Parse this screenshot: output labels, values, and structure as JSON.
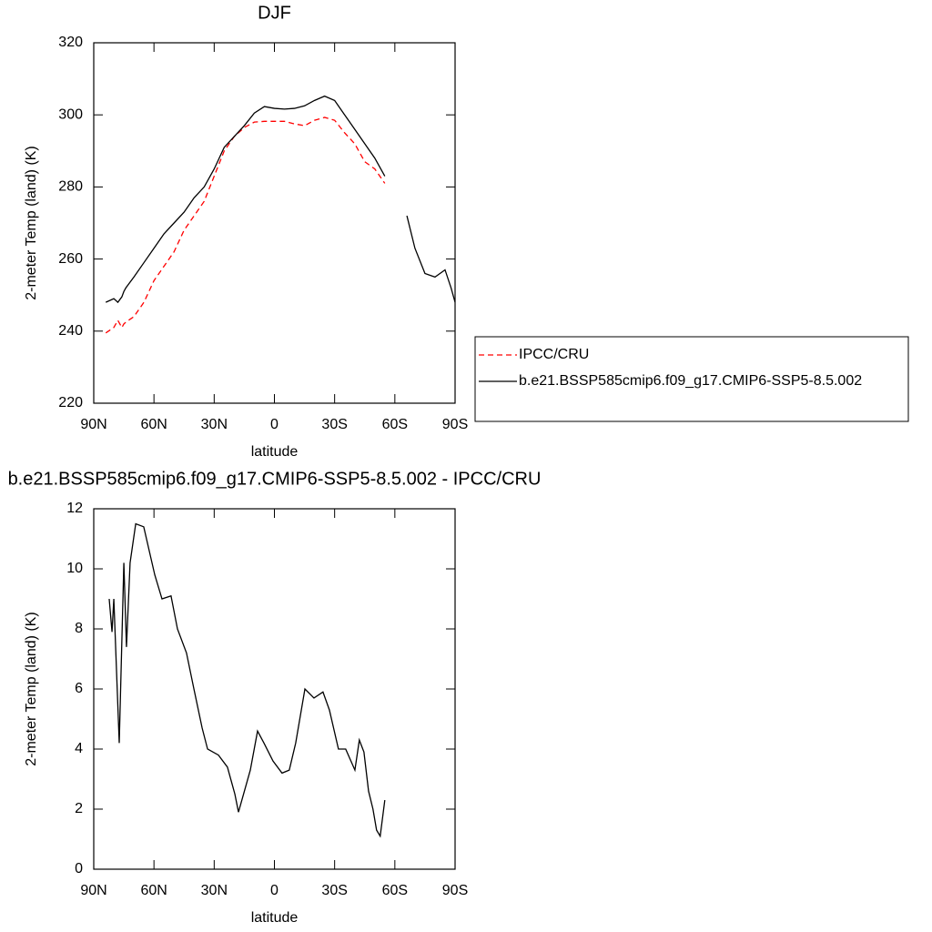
{
  "chart_data": [
    {
      "type": "line",
      "title": "DJF",
      "x_label": "latitude",
      "y_label": "2-meter Temp (land) (K)",
      "xlim": [
        90,
        -90
      ],
      "ylim": [
        220,
        320
      ],
      "xticks": [
        {
          "value": 90,
          "label": "90N"
        },
        {
          "value": 60,
          "label": "60N"
        },
        {
          "value": 30,
          "label": "30N"
        },
        0,
        {
          "value": -30,
          "label": "30S"
        },
        {
          "value": -60,
          "label": "60S"
        },
        {
          "value": -90,
          "label": "90S"
        }
      ],
      "yticks": [
        220,
        240,
        260,
        280,
        300,
        320
      ],
      "legend": "right",
      "x": [
        84,
        80,
        78,
        76,
        75,
        74,
        70,
        65,
        60,
        55,
        50,
        45,
        40,
        35,
        30,
        25,
        20,
        15,
        10,
        5,
        0,
        -5,
        -10,
        -15,
        -20,
        -25,
        -30,
        -35,
        -40,
        -45,
        -50,
        -55,
        -60,
        -66,
        -70,
        -75,
        -80,
        -85,
        -88,
        -90
      ],
      "series": [
        {
          "name": "IPCC/CRU",
          "color": "#ff0000",
          "line_style": "dashed",
          "values": [
            239.5,
            241,
            243,
            241,
            242,
            242.5,
            244,
            248,
            254,
            258,
            262,
            268,
            272,
            276,
            283,
            290,
            294,
            296.5,
            298,
            298.2,
            298.2,
            298.2,
            297.5,
            297,
            298.5,
            299.3,
            298.5,
            295,
            292,
            287,
            285,
            281,
            null,
            null,
            null,
            null,
            null,
            null,
            null,
            null
          ]
        },
        {
          "name": "b.e21.BSSP585cmip6.f09_g17.CMIP6-SSP5-8.5.002",
          "color": "#000000",
          "line_style": "solid",
          "values": [
            248,
            249,
            248,
            249.5,
            251,
            252,
            255,
            259,
            263,
            267,
            270,
            273,
            277,
            280,
            285,
            291,
            294,
            297,
            300.5,
            302.3,
            301.8,
            301.6,
            301.8,
            302.5,
            304,
            305.2,
            304,
            300,
            296,
            292,
            288,
            283,
            null,
            272,
            263,
            256,
            255,
            257,
            252,
            248
          ]
        }
      ]
    },
    {
      "type": "line",
      "title": "b.e21.BSSP585cmip6.f09_g17.CMIP6-SSP5-8.5.002 - IPCC/CRU",
      "x_label": "latitude",
      "y_label": "2-meter Temp (land) (K)",
      "xlim": [
        90,
        -90
      ],
      "ylim": [
        0,
        12
      ],
      "xticks": [
        {
          "value": 90,
          "label": "90N"
        },
        {
          "value": 60,
          "label": "60N"
        },
        {
          "value": 30,
          "label": "30N"
        },
        0,
        {
          "value": -30,
          "label": "30S"
        },
        {
          "value": -60,
          "label": "60S"
        },
        {
          "value": -90,
          "label": "90S"
        }
      ],
      "yticks": [
        0,
        2,
        4,
        6,
        8,
        10,
        12
      ],
      "x": [
        82.3,
        80.9,
        80,
        77.3,
        75,
        73.7,
        71.9,
        69.1,
        65.1,
        59.6,
        56,
        51.5,
        48.3,
        43.8,
        40.1,
        36,
        33.3,
        27.9,
        23.4,
        19.7,
        17.9,
        12,
        8.4,
        5.2,
        0.7,
        -3.8,
        -7.4,
        -10.6,
        -15.2,
        -19.7,
        -24.2,
        -27.4,
        -31.9,
        -35.5,
        -40.1,
        -42.3,
        -44.6,
        -46.9,
        -49.1,
        -50.9,
        -52.7,
        -55
      ],
      "color": "#000000",
      "values": [
        9,
        7.9,
        9,
        4.2,
        10.2,
        7.4,
        10.2,
        11.5,
        11.4,
        9.8,
        9,
        9.1,
        8,
        7.2,
        6,
        4.7,
        4,
        3.8,
        3.4,
        2.5,
        1.9,
        3.3,
        4.6,
        4.2,
        3.6,
        3.2,
        3.3,
        4.2,
        6,
        5.7,
        5.9,
        5.3,
        4,
        4,
        3.3,
        4.3,
        3.9,
        2.6,
        2,
        1.3,
        1.1,
        2.3
      ]
    }
  ]
}
